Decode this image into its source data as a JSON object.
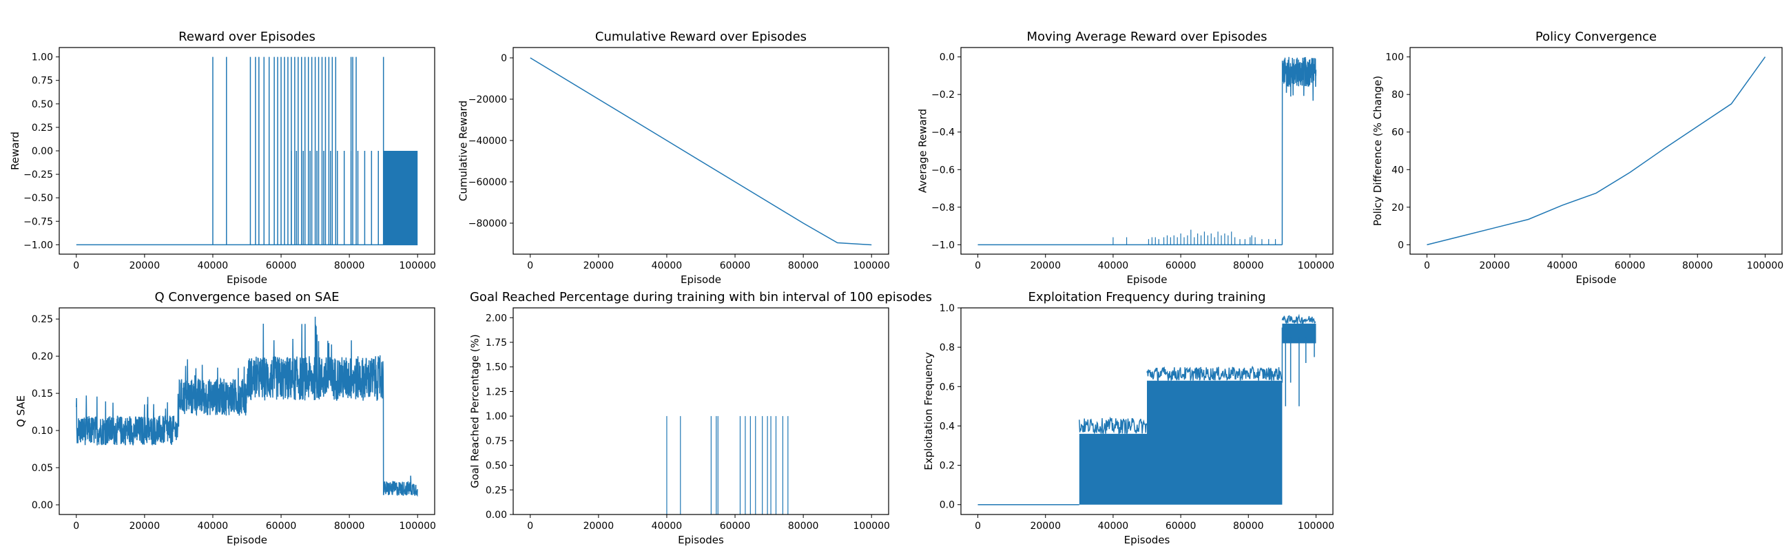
{
  "chart_data": [
    {
      "type": "bar",
      "title": "Reward over Episodes",
      "xlabel": "Episode",
      "ylabel": "Reward",
      "xlim": [
        -5000,
        105000
      ],
      "ylim": [
        -1.1,
        1.1
      ],
      "xticks": [
        0,
        20000,
        40000,
        60000,
        80000,
        100000
      ],
      "xtick_labels": [
        "0",
        "20000",
        "40000",
        "60000",
        "80000",
        "100000"
      ],
      "yticks": [
        -1.0,
        -0.75,
        -0.5,
        -0.25,
        0.0,
        0.25,
        0.5,
        0.75,
        1.0
      ],
      "ytick_labels": [
        "−1.00",
        "−0.75",
        "−0.50",
        "−0.25",
        "0.00",
        "0.25",
        "0.50",
        "0.75",
        "1.00"
      ],
      "baseline": -1.0,
      "spikes_to_one": [
        40000,
        44000,
        51000,
        52500,
        53500,
        55000,
        56500,
        58000,
        59000,
        60000,
        61000,
        62000,
        63000,
        64000,
        65000,
        66000,
        67000,
        68000,
        69000,
        70000,
        71000,
        72000,
        73000,
        74000,
        75000,
        76000,
        80500,
        81000,
        82000,
        90000
      ],
      "spikes_to_zero": [
        63000,
        64500,
        66500,
        68500,
        70500,
        72500,
        74500,
        76500,
        78500,
        80500,
        82500,
        84500,
        86500,
        88500
      ],
      "dense_zero_band": [
        90000,
        100000
      ]
    },
    {
      "type": "line",
      "title": "Cumulative Reward over Episodes",
      "xlabel": "Episode",
      "ylabel": "Cumulative Reward",
      "xlim": [
        -5000,
        105000
      ],
      "ylim": [
        -95000,
        5000
      ],
      "xticks": [
        0,
        20000,
        40000,
        60000,
        80000,
        100000
      ],
      "xtick_labels": [
        "0",
        "20000",
        "40000",
        "60000",
        "80000",
        "100000"
      ],
      "yticks": [
        0,
        -20000,
        -40000,
        -60000,
        -80000
      ],
      "ytick_labels": [
        "0",
        "−20000",
        "−40000",
        "−60000",
        "−80000"
      ],
      "x": [
        0,
        20000,
        40000,
        60000,
        80000,
        90000,
        95000,
        100000
      ],
      "y": [
        0,
        -20000,
        -40000,
        -60000,
        -80000,
        -89500,
        -90000,
        -90500
      ]
    },
    {
      "type": "line",
      "title": "Moving Average Reward over Episodes",
      "xlabel": "Episode",
      "ylabel": "Average Reward",
      "xlim": [
        -5000,
        105000
      ],
      "ylim": [
        -1.05,
        0.05
      ],
      "xticks": [
        0,
        20000,
        40000,
        60000,
        80000,
        100000
      ],
      "xtick_labels": [
        "0",
        "20000",
        "40000",
        "60000",
        "80000",
        "100000"
      ],
      "yticks": [
        0.0,
        -0.2,
        -0.4,
        -0.6,
        -0.8,
        -1.0
      ],
      "ytick_labels": [
        "0.0",
        "−0.2",
        "−0.4",
        "−0.6",
        "−0.8",
        "−1.0"
      ],
      "baseline": -1.0,
      "spikes": [
        [
          40000,
          -0.96
        ],
        [
          44000,
          -0.96
        ],
        [
          50500,
          -0.97
        ],
        [
          51500,
          -0.96
        ],
        [
          52500,
          -0.96
        ],
        [
          53500,
          -0.97
        ],
        [
          55000,
          -0.96
        ],
        [
          56000,
          -0.95
        ],
        [
          57000,
          -0.96
        ],
        [
          58000,
          -0.95
        ],
        [
          59000,
          -0.96
        ],
        [
          60000,
          -0.94
        ],
        [
          61000,
          -0.96
        ],
        [
          62000,
          -0.95
        ],
        [
          63000,
          -0.92
        ],
        [
          64000,
          -0.96
        ],
        [
          65000,
          -0.94
        ],
        [
          66000,
          -0.95
        ],
        [
          67000,
          -0.93
        ],
        [
          68000,
          -0.95
        ],
        [
          69000,
          -0.94
        ],
        [
          70000,
          -0.96
        ],
        [
          71000,
          -0.93
        ],
        [
          72000,
          -0.95
        ],
        [
          73000,
          -0.94
        ],
        [
          74000,
          -0.95
        ],
        [
          75000,
          -0.93
        ],
        [
          76000,
          -0.96
        ],
        [
          77500,
          -0.97
        ],
        [
          79000,
          -0.97
        ],
        [
          80500,
          -0.96
        ],
        [
          81000,
          -0.95
        ],
        [
          82000,
          -0.96
        ],
        [
          84000,
          -0.97
        ],
        [
          86000,
          -0.97
        ],
        [
          88000,
          -0.97
        ]
      ],
      "plateau_range": [
        90000,
        100000
      ],
      "plateau_level": -0.08,
      "plateau_noise": 0.08
    },
    {
      "type": "line",
      "title": "Policy Convergence",
      "xlabel": "Episode",
      "ylabel": "Policy Difference (% Change)",
      "xlim": [
        -5000,
        105000
      ],
      "ylim": [
        -5,
        105
      ],
      "xticks": [
        0,
        20000,
        40000,
        60000,
        80000,
        100000
      ],
      "xtick_labels": [
        "0",
        "20000",
        "40000",
        "60000",
        "80000",
        "100000"
      ],
      "yticks": [
        0,
        20,
        40,
        60,
        80,
        100
      ],
      "ytick_labels": [
        "0",
        "20",
        "40",
        "60",
        "80",
        "100"
      ],
      "x": [
        0,
        10000,
        20000,
        30000,
        40000,
        50000,
        60000,
        70000,
        80000,
        90000,
        100000
      ],
      "y": [
        0,
        4.5,
        9,
        13.5,
        21,
        27.5,
        38.5,
        51,
        63,
        75,
        100
      ]
    },
    {
      "type": "line",
      "title": "Q Convergence based on SAE",
      "xlabel": "Episode",
      "ylabel": "Q SAE",
      "xlim": [
        -5000,
        105000
      ],
      "ylim": [
        -0.013,
        0.265
      ],
      "xticks": [
        0,
        20000,
        40000,
        60000,
        80000,
        100000
      ],
      "xtick_labels": [
        "0",
        "20000",
        "40000",
        "60000",
        "80000",
        "100000"
      ],
      "yticks": [
        0.0,
        0.05,
        0.1,
        0.15,
        0.2,
        0.25
      ],
      "ytick_labels": [
        "0.00",
        "0.05",
        "0.10",
        "0.15",
        "0.20",
        "0.25"
      ],
      "segments": [
        {
          "x0": 0,
          "x1": 30000,
          "mean": 0.1,
          "spread": 0.02
        },
        {
          "x0": 30000,
          "x1": 50000,
          "mean": 0.145,
          "spread": 0.025
        },
        {
          "x0": 50000,
          "x1": 90000,
          "mean": 0.17,
          "spread": 0.03
        },
        {
          "x0": 90000,
          "x1": 100000,
          "mean": 0.022,
          "spread": 0.01
        }
      ],
      "peak": 0.253
    },
    {
      "type": "bar",
      "title": "Goal Reached Percentage during training with bin interval of 100 episodes",
      "xlabel": "Episodes",
      "ylabel": "Goal Reached Percentage (%)",
      "xlim": [
        -5000,
        105000
      ],
      "ylim": [
        0,
        2.1
      ],
      "xticks": [
        0,
        20000,
        40000,
        60000,
        80000,
        100000
      ],
      "xtick_labels": [
        "0",
        "20000",
        "40000",
        "60000",
        "80000",
        "100000"
      ],
      "yticks": [
        0.0,
        0.25,
        0.5,
        0.75,
        1.0,
        1.25,
        1.5,
        1.75,
        2.0
      ],
      "ytick_labels": [
        "0.00",
        "0.25",
        "0.50",
        "0.75",
        "1.00",
        "1.25",
        "1.50",
        "1.75",
        "2.00"
      ],
      "x": [
        40000,
        44000,
        53000,
        54500,
        55000,
        61500,
        63000,
        64500,
        66000,
        68000,
        69500,
        70500,
        72000,
        74000,
        75500
      ],
      "values": [
        1,
        1,
        1,
        1,
        1,
        1,
        1,
        1,
        1,
        1,
        1,
        1,
        1,
        1,
        1
      ]
    },
    {
      "type": "area",
      "title": "Exploitation Frequency during training",
      "xlabel": "Episodes",
      "ylabel": "Exploitation Frequency",
      "xlim": [
        -5000,
        105000
      ],
      "ylim": [
        -0.05,
        1.0
      ],
      "xticks": [
        0,
        20000,
        40000,
        60000,
        80000,
        100000
      ],
      "xtick_labels": [
        "0",
        "20000",
        "40000",
        "60000",
        "80000",
        "100000"
      ],
      "yticks": [
        0.0,
        0.2,
        0.4,
        0.6,
        0.8,
        1.0
      ],
      "ytick_labels": [
        "0.0",
        "0.2",
        "0.4",
        "0.6",
        "0.8",
        "1.0"
      ],
      "segments": [
        {
          "x0": 0,
          "x1": 30000,
          "low": 0.0,
          "high": 0.0
        },
        {
          "x0": 30000,
          "x1": 50000,
          "low": 0.0,
          "high": 0.36,
          "peak": 0.44
        },
        {
          "x0": 50000,
          "x1": 90000,
          "low": 0.0,
          "high": 0.63,
          "peak": 0.7
        },
        {
          "x0": 90000,
          "x1": 100000,
          "low": 0.82,
          "high": 0.92,
          "peak": 0.96
        }
      ],
      "dips": [
        [
          91000,
          0.5
        ],
        [
          92500,
          0.62
        ],
        [
          95000,
          0.5
        ],
        [
          97000,
          0.72
        ],
        [
          99500,
          0.75
        ]
      ]
    }
  ],
  "colors": {
    "series": "#1f77b4",
    "axis": "#000000",
    "background": "#ffffff"
  }
}
